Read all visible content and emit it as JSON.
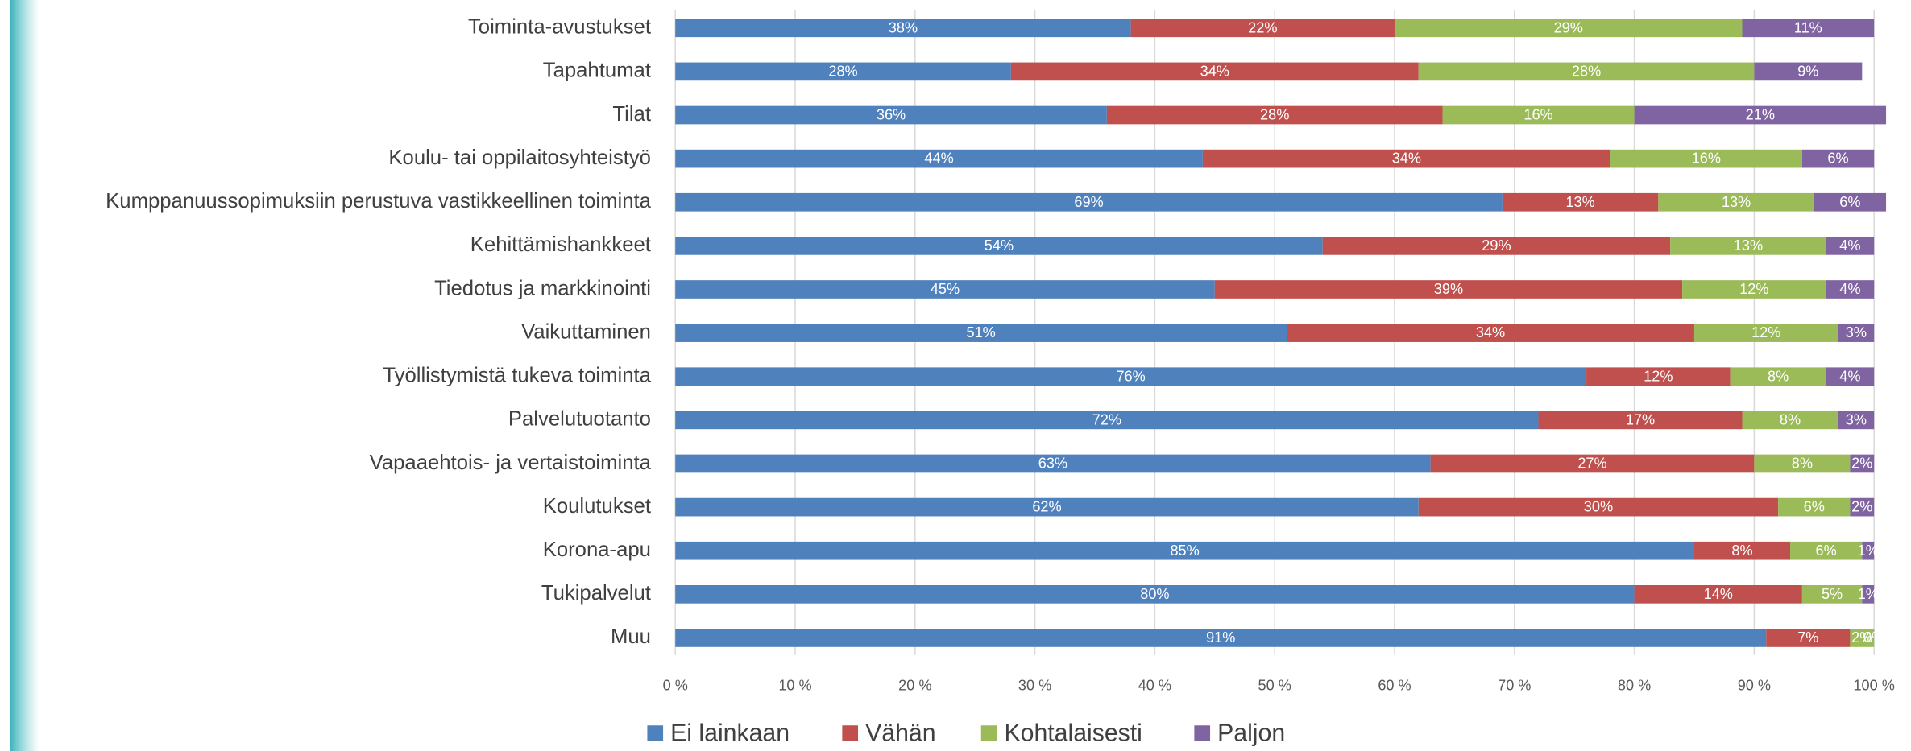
{
  "chart_data": {
    "type": "stacked_bar_horizontal",
    "categories": [
      "Toiminta-avustukset",
      "Tapahtumat",
      "Tilat",
      "Koulu- tai oppilaitosyhteistyö",
      "Kumppanuussopimuksiin perustuva vastikkeellinen toiminta",
      "Kehittämishankkeet",
      "Tiedotus ja markkinointi",
      "Vaikuttaminen",
      "Työllistymistä tukeva toiminta",
      "Palvelutuotanto",
      "Vapaaehtois- ja vertaistoiminta",
      "Koulutukset",
      "Korona-apu",
      "Tukipalvelut",
      "Muu"
    ],
    "series": [
      {
        "name": "Ei lainkaan",
        "color": "#4f81bd",
        "values": [
          38,
          28,
          36,
          44,
          69,
          54,
          45,
          51,
          76,
          72,
          63,
          62,
          85,
          80,
          91
        ],
        "value_labels": [
          "38%",
          "28%",
          "36%",
          "44%",
          "69%",
          "54%",
          "45%",
          "51%",
          "76%",
          "72%",
          "63%",
          "62%",
          "85%",
          "80%",
          "91%"
        ]
      },
      {
        "name": "Vähän",
        "color": "#c0504d",
        "values": [
          22,
          34,
          28,
          34,
          13,
          29,
          39,
          34,
          12,
          17,
          27,
          30,
          8,
          14,
          7
        ],
        "value_labels": [
          "22%",
          "34%",
          "28%",
          "34%",
          "13%",
          "29%",
          "39%",
          "34%",
          "12%",
          "17%",
          "27%",
          "30%",
          "8%",
          "14%",
          "7%"
        ]
      },
      {
        "name": "Kohtalaisesti",
        "color": "#9bbb59",
        "values": [
          29,
          28,
          16,
          16,
          13,
          13,
          12,
          12,
          8,
          8,
          8,
          6,
          6,
          5,
          2
        ],
        "value_labels": [
          "29%",
          "28%",
          "16%",
          "16%",
          "13%",
          "13%",
          "12%",
          "12%",
          "8%",
          "8%",
          "8%",
          "6%",
          "6%",
          "5%",
          "2%"
        ]
      },
      {
        "name": "Paljon",
        "color": "#8064a2",
        "values": [
          11,
          9,
          21,
          6,
          6,
          4,
          4,
          3,
          4,
          3,
          2,
          2,
          1,
          1,
          0
        ],
        "value_labels": [
          "11%",
          "9%",
          "21%",
          "6%",
          "6%",
          "4%",
          "4%",
          "3%",
          "4%",
          "3%",
          "2%",
          "2%",
          "1%",
          "1%",
          "0%"
        ]
      }
    ],
    "xlim": [
      0,
      100
    ],
    "xticks": [
      {
        "value": 0,
        "label": "0 %"
      },
      {
        "value": 10,
        "label": "10 %"
      },
      {
        "value": 20,
        "label": "20 %"
      },
      {
        "value": 30,
        "label": "30 %"
      },
      {
        "value": 40,
        "label": "40 %"
      },
      {
        "value": 50,
        "label": "50 %"
      },
      {
        "value": 60,
        "label": "60 %"
      },
      {
        "value": 70,
        "label": "70 %"
      },
      {
        "value": 80,
        "label": "80 %"
      },
      {
        "value": 90,
        "label": "90 %"
      },
      {
        "value": 100,
        "label": "100 %"
      }
    ],
    "grid": true,
    "legend": "bottom"
  }
}
